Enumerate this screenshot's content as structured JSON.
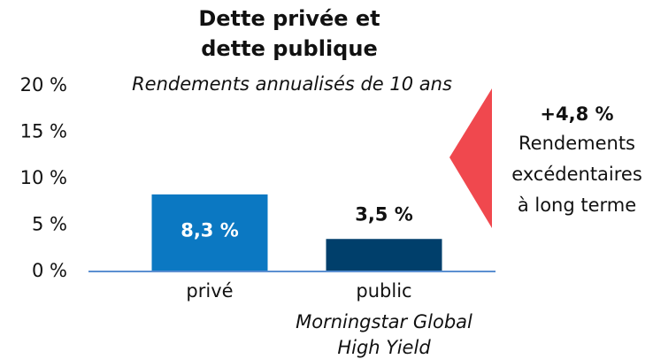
{
  "chart_data": {
    "type": "bar",
    "title": [
      "Dette privée et",
      "dette publique"
    ],
    "subtitle": "Rendements annualisés de 10 ans",
    "categories": [
      "privé",
      "public"
    ],
    "category_notes": [
      null,
      [
        "Morningstar Global",
        "High Yield"
      ]
    ],
    "values": [
      8.3,
      3.5
    ],
    "value_labels": [
      "8,3 %",
      "3,5 %"
    ],
    "colors": [
      "#0b78c2",
      "#003f6b"
    ],
    "ylim": [
      0,
      20
    ],
    "yticks": [
      {
        "value": 0,
        "label": "0 %"
      },
      {
        "value": 5,
        "label": "5 %"
      },
      {
        "value": 10,
        "label": "10 %"
      },
      {
        "value": 15,
        "label": "15 %"
      },
      {
        "value": 20,
        "label": "20 %"
      }
    ],
    "annotation": {
      "value": "+4,8 %",
      "text": [
        "Rendements",
        "excédentaires",
        "à long terme"
      ],
      "color": "#f0484e"
    }
  }
}
